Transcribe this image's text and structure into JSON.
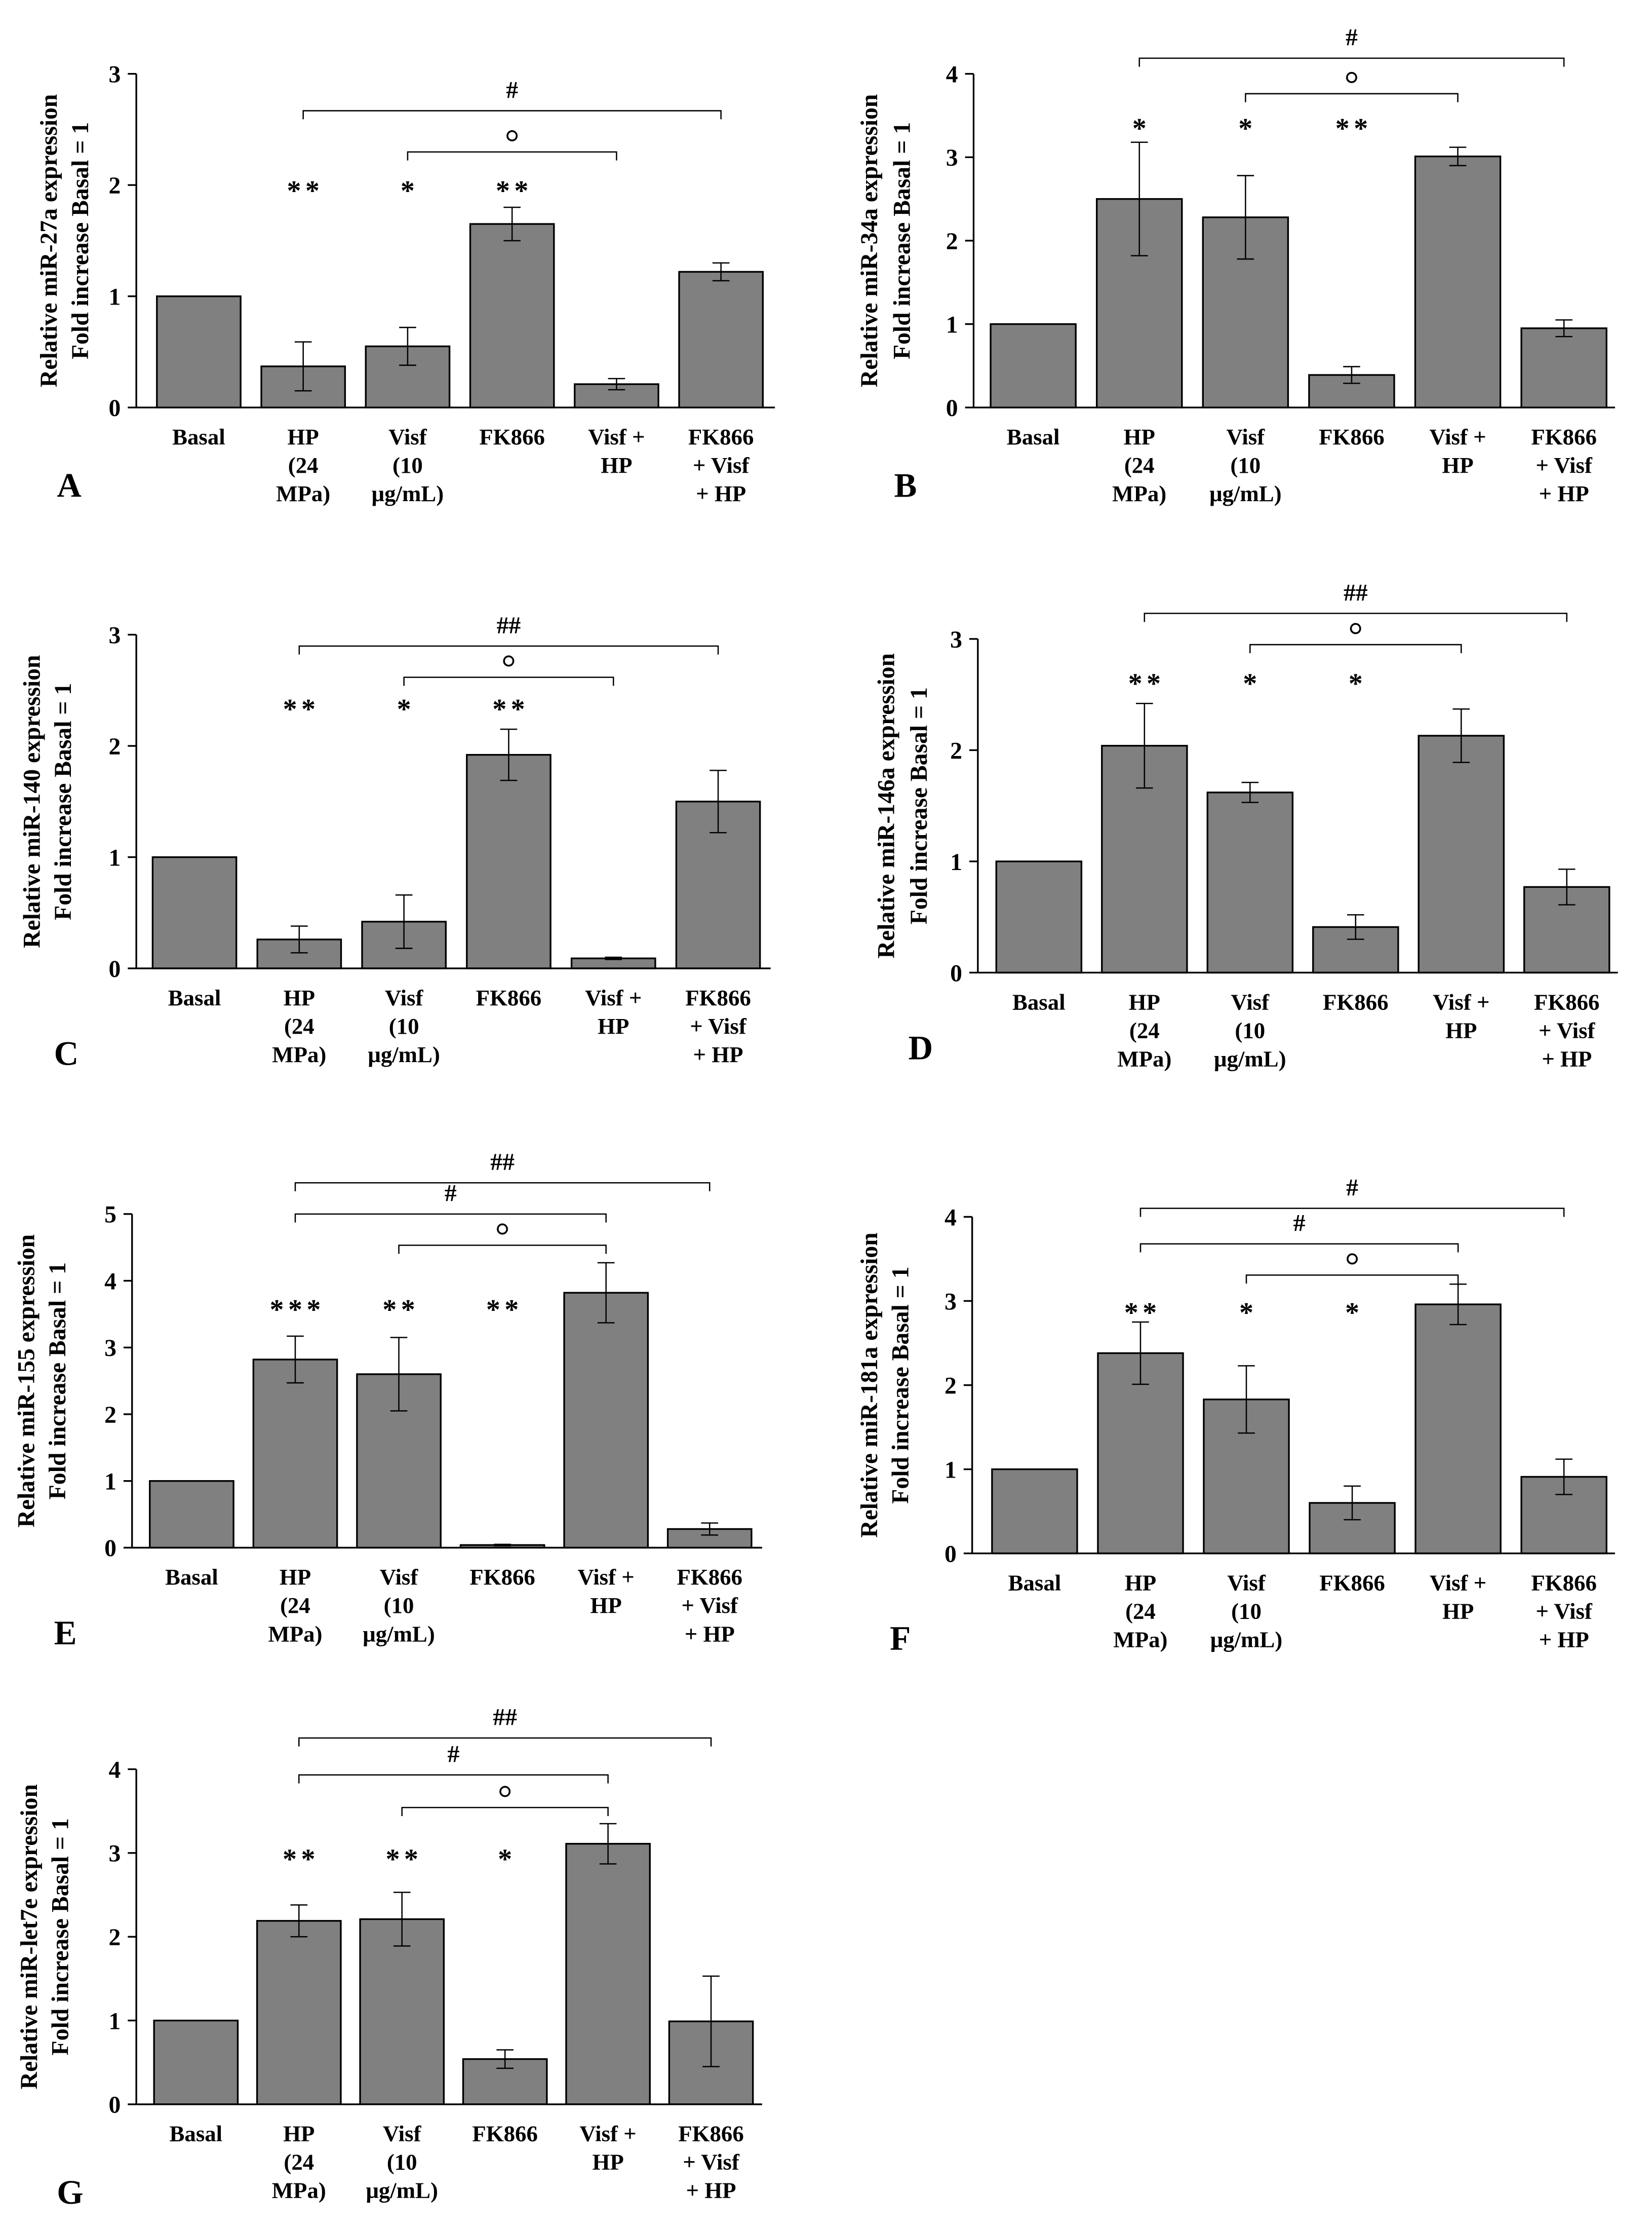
{
  "colors": {
    "bar": "#808080",
    "stroke": "#000000",
    "background": "#ffffff"
  },
  "chart_data": [
    {
      "panel": "A",
      "type": "bar",
      "ylabel": [
        "Relative miR-27a expression",
        "Fold increase Basal = 1"
      ],
      "ylim": [
        0,
        3
      ],
      "yticks": [
        0,
        1,
        2,
        3
      ],
      "categories": [
        [
          "Basal"
        ],
        [
          "HP",
          "(24",
          "MPa)"
        ],
        [
          "Visf",
          "(10",
          "μg/mL)"
        ],
        [
          "FK866"
        ],
        [
          "Visf +",
          "HP"
        ],
        [
          "FK866",
          "+ Visf",
          "+ HP"
        ]
      ],
      "values": [
        1.0,
        0.37,
        0.55,
        1.65,
        0.21,
        1.22
      ],
      "errors": [
        0,
        0.22,
        0.17,
        0.15,
        0.05,
        0.08
      ],
      "significance": [
        "",
        "**",
        "*",
        "**",
        "",
        ""
      ],
      "comparisons": [
        {
          "groups": [
            1,
            5
          ],
          "label": "#"
        },
        {
          "groups": [
            2,
            4
          ],
          "label": "°"
        }
      ]
    },
    {
      "panel": "B",
      "type": "bar",
      "ylabel": [
        "Relative miR-34a expression",
        "Fold increase Basal = 1"
      ],
      "ylim": [
        0,
        4
      ],
      "yticks": [
        0,
        1,
        2,
        3,
        4
      ],
      "categories": [
        [
          "Basal"
        ],
        [
          "HP",
          "(24",
          "MPa)"
        ],
        [
          "Visf",
          "(10",
          "μg/mL)"
        ],
        [
          "FK866"
        ],
        [
          "Visf +",
          "HP"
        ],
        [
          "FK866",
          "+ Visf",
          "+ HP"
        ]
      ],
      "values": [
        1.0,
        2.5,
        2.28,
        0.39,
        3.01,
        0.95
      ],
      "errors": [
        0,
        0.68,
        0.5,
        0.1,
        0.11,
        0.1
      ],
      "significance": [
        "",
        "*",
        "*",
        "**",
        "",
        ""
      ],
      "comparisons": [
        {
          "groups": [
            1,
            5
          ],
          "label": "#"
        },
        {
          "groups": [
            2,
            4
          ],
          "label": "°"
        }
      ]
    },
    {
      "panel": "C",
      "type": "bar",
      "ylabel": [
        "Relative miR-140 expression",
        "Fold increase Basal = 1"
      ],
      "ylim": [
        0,
        3
      ],
      "yticks": [
        0,
        1,
        2,
        3
      ],
      "categories": [
        [
          "Basal"
        ],
        [
          "HP",
          "(24",
          "MPa)"
        ],
        [
          "Visf",
          "(10",
          "μg/mL)"
        ],
        [
          "FK866"
        ],
        [
          "Visf +",
          "HP"
        ],
        [
          "FK866",
          "+ Visf",
          "+ HP"
        ]
      ],
      "values": [
        1.0,
        0.26,
        0.42,
        1.92,
        0.09,
        1.5
      ],
      "errors": [
        0,
        0.12,
        0.24,
        0.23,
        0.01,
        0.28
      ],
      "significance": [
        "",
        "**",
        "*",
        "**",
        "",
        ""
      ],
      "comparisons": [
        {
          "groups": [
            1,
            5
          ],
          "label": "##"
        },
        {
          "groups": [
            2,
            4
          ],
          "label": "°"
        }
      ]
    },
    {
      "panel": "D",
      "type": "bar",
      "ylabel": [
        "Relative miR-146a expression",
        "Fold increase Basal = 1"
      ],
      "ylim": [
        0,
        3
      ],
      "yticks": [
        0,
        1,
        2,
        3
      ],
      "categories": [
        [
          "Basal"
        ],
        [
          "HP",
          "(24",
          "MPa)"
        ],
        [
          "Visf",
          "(10",
          "μg/mL)"
        ],
        [
          "FK866"
        ],
        [
          "Visf +",
          "HP"
        ],
        [
          "FK866",
          "+ Visf",
          "+ HP"
        ]
      ],
      "values": [
        1.0,
        2.04,
        1.62,
        0.41,
        2.13,
        0.77
      ],
      "errors": [
        0,
        0.38,
        0.09,
        0.11,
        0.24,
        0.16
      ],
      "significance": [
        "",
        "**",
        "*",
        "*",
        "",
        ""
      ],
      "comparisons": [
        {
          "groups": [
            1,
            5
          ],
          "label": "##"
        },
        {
          "groups": [
            2,
            4
          ],
          "label": "°"
        }
      ]
    },
    {
      "panel": "E",
      "type": "bar",
      "ylabel": [
        "Relative miR-155 expression",
        "Fold increase Basal = 1"
      ],
      "ylim": [
        0,
        5
      ],
      "yticks": [
        0,
        1,
        2,
        3,
        4,
        5
      ],
      "categories": [
        [
          "Basal"
        ],
        [
          "HP",
          "(24",
          "MPa)"
        ],
        [
          "Visf",
          "(10",
          "μg/mL)"
        ],
        [
          "FK866"
        ],
        [
          "Visf +",
          "HP"
        ],
        [
          "FK866",
          "+ Visf",
          "+ HP"
        ]
      ],
      "values": [
        1.0,
        2.82,
        2.6,
        0.04,
        3.82,
        0.28
      ],
      "errors": [
        0,
        0.35,
        0.55,
        0.01,
        0.45,
        0.09
      ],
      "significance": [
        "",
        "***",
        "**",
        "**",
        "",
        ""
      ],
      "comparisons": [
        {
          "groups": [
            1,
            5
          ],
          "label": "##"
        },
        {
          "groups": [
            1,
            4
          ],
          "label": "#"
        },
        {
          "groups": [
            2,
            4
          ],
          "label": "°"
        }
      ]
    },
    {
      "panel": "F",
      "type": "bar",
      "ylabel": [
        "Relative miR-181a expression",
        "Fold increase Basal = 1"
      ],
      "ylim": [
        0,
        4
      ],
      "yticks": [
        0,
        1,
        2,
        3,
        4
      ],
      "categories": [
        [
          "Basal"
        ],
        [
          "HP",
          "(24",
          "MPa)"
        ],
        [
          "Visf",
          "(10",
          "μg/mL)"
        ],
        [
          "FK866"
        ],
        [
          "Visf +",
          "HP"
        ],
        [
          "FK866",
          "+ Visf",
          "+ HP"
        ]
      ],
      "values": [
        1.0,
        2.38,
        1.83,
        0.6,
        2.96,
        0.91
      ],
      "errors": [
        0,
        0.37,
        0.4,
        0.2,
        0.24,
        0.21
      ],
      "significance": [
        "",
        "**",
        "*",
        "*",
        "",
        ""
      ],
      "comparisons": [
        {
          "groups": [
            1,
            5
          ],
          "label": "#"
        },
        {
          "groups": [
            1,
            4
          ],
          "label": "#"
        },
        {
          "groups": [
            2,
            4
          ],
          "label": "°"
        }
      ]
    },
    {
      "panel": "G",
      "type": "bar",
      "ylabel": [
        "Relative miR-let7e expression",
        "Fold increase Basal = 1"
      ],
      "ylim": [
        0,
        4
      ],
      "yticks": [
        0,
        1,
        2,
        3,
        4
      ],
      "categories": [
        [
          "Basal"
        ],
        [
          "HP",
          "(24",
          "MPa)"
        ],
        [
          "Visf",
          "(10",
          "μg/mL)"
        ],
        [
          "FK866"
        ],
        [
          "Visf +",
          "HP"
        ],
        [
          "FK866",
          "+ Visf",
          "+ HP"
        ]
      ],
      "values": [
        1.0,
        2.19,
        2.21,
        0.54,
        3.11,
        0.99
      ],
      "errors": [
        0,
        0.19,
        0.32,
        0.11,
        0.24,
        0.54
      ],
      "significance": [
        "",
        "**",
        "**",
        "*",
        "",
        ""
      ],
      "comparisons": [
        {
          "groups": [
            1,
            5
          ],
          "label": "##"
        },
        {
          "groups": [
            1,
            4
          ],
          "label": "#"
        },
        {
          "groups": [
            2,
            4
          ],
          "label": "°"
        }
      ]
    }
  ]
}
